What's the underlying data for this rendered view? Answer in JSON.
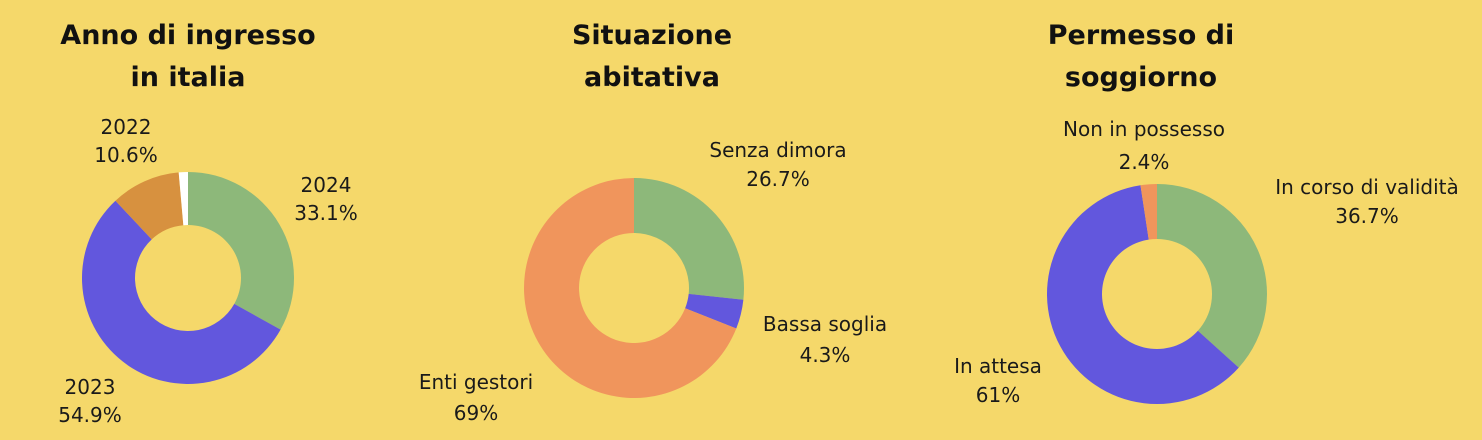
{
  "colors": {
    "background": "#F5D86A",
    "green": "#8DB87A",
    "purple": "#6257DD",
    "orange_dark": "#D7913F",
    "orange_light": "#F0955C",
    "white": "#FFFFFF"
  },
  "chart_data": [
    {
      "type": "pie",
      "donut": true,
      "title": [
        "Anno di ingresso",
        "in italia"
      ],
      "slices": [
        {
          "label": "2024",
          "value": 33.1,
          "display": "33.1%",
          "color": "#8DB87A"
        },
        {
          "label": "2023",
          "value": 54.9,
          "display": "54.9%",
          "color": "#6257DD"
        },
        {
          "label": "2022",
          "value": 10.6,
          "display": "10.6%",
          "color": "#D7913F"
        },
        {
          "label": "",
          "value": 1.4,
          "display": "",
          "color": "#FFFFFF"
        }
      ]
    },
    {
      "type": "pie",
      "donut": true,
      "title": [
        "Situazione",
        "abitativa"
      ],
      "slices": [
        {
          "label": "Senza dimora",
          "value": 26.7,
          "display": "26.7%",
          "color": "#8DB87A"
        },
        {
          "label": "Bassa soglia",
          "value": 4.3,
          "display": "4.3%",
          "color": "#6257DD"
        },
        {
          "label": "Enti gestori",
          "value": 69,
          "display": "69%",
          "color": "#F0955C"
        }
      ]
    },
    {
      "type": "pie",
      "donut": true,
      "title": [
        "Permesso di",
        "soggiorno"
      ],
      "slices": [
        {
          "label": "In corso di validità",
          "value": 36.7,
          "display": "36.7%",
          "color": "#8DB87A"
        },
        {
          "label": "In attesa",
          "value": 61,
          "display": "61%",
          "color": "#6257DD"
        },
        {
          "label": "Non in possesso",
          "value": 2.4,
          "display": "2.4%",
          "color": "#F0955C"
        }
      ]
    }
  ]
}
